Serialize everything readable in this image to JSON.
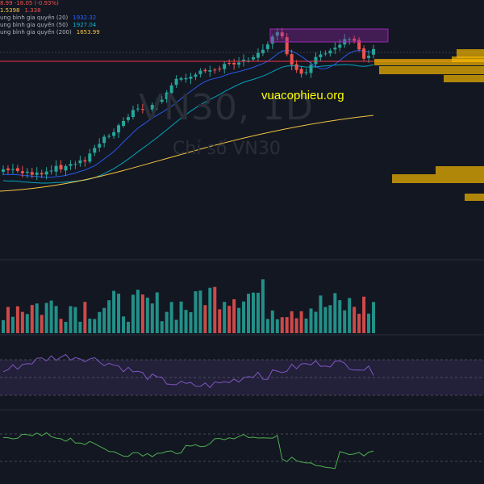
{
  "legend": {
    "change": "8.99  -18.05 (-0.93%)",
    "vol_a": "1.5398",
    "vol_b": "1.338",
    "ma20_label": "ung bình gia quyền (20)",
    "ma20_value": "1932.32",
    "ma50_label": "ung bình gia quyền (50)",
    "ma50_value": "1927.04",
    "ma200_label": "ung bình gia quyền (200)",
    "ma200_value": "1653.99"
  },
  "watermark": {
    "symbol": "VN30, 1D",
    "name": "Chỉ số VN30"
  },
  "brand": "vuacophieu.org",
  "colors": {
    "up": "#26a69a",
    "down": "#ef5350",
    "ma20": "#2962ff",
    "ma50": "#00bcd4",
    "ma200": "#f5c542",
    "rsi": "#7e57c2",
    "osc": "#4caf50",
    "profile": "#f5b800",
    "box": "#9c27b0",
    "hline": "#f23645"
  },
  "chart_data": {
    "type": "candlestick",
    "indicators": [
      "WMA 20",
      "WMA 50",
      "WMA 200",
      "Volume",
      "RSI",
      "Oscillator"
    ],
    "candle_count": 78,
    "volume_profile": "right side",
    "grid": false
  }
}
